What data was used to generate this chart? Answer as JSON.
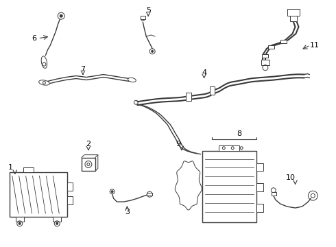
{
  "bg_color": "#ffffff",
  "line_color": "#3a3a3a",
  "figsize": [
    4.9,
    3.6
  ],
  "dpi": 100,
  "lw": 1.0,
  "lw_thick": 1.5,
  "lw_thin": 0.7
}
